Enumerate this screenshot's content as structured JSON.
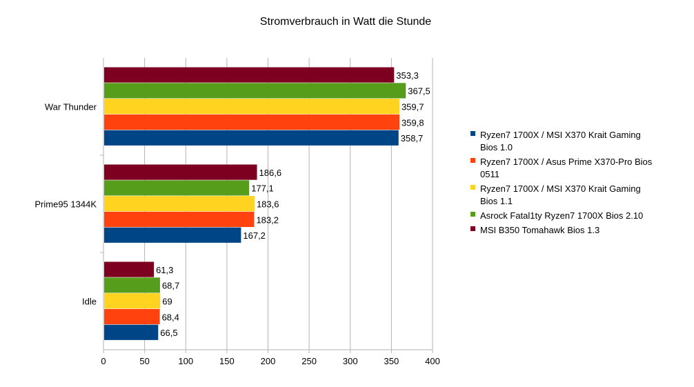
{
  "chart_data": {
    "type": "bar",
    "orientation": "horizontal",
    "title": "Stromverbrauch in Watt die Stunde",
    "xlabel": "",
    "ylabel": "",
    "xlim": [
      0,
      400
    ],
    "x_ticks": [
      "0",
      "50",
      "100",
      "150",
      "200",
      "250",
      "300",
      "350",
      "400"
    ],
    "x_tick_values": [
      0,
      50,
      100,
      150,
      200,
      250,
      300,
      350,
      400
    ],
    "grid": true,
    "legend_position": "right",
    "categories": [
      "War Thunder",
      "Prime95 1344K",
      "Idle"
    ],
    "series": [
      {
        "name": "Ryzen7 1700X / MSI X370 Krait Gaming Bios 1.0",
        "legend_lines": [
          "Ryzen7 1700X / MSI X370 Krait Gaming",
          "Bios 1.0"
        ],
        "color": "#004586",
        "values": [
          358.7,
          167.2,
          66.5
        ],
        "labels": [
          "358,7",
          "167,2",
          "66,5"
        ]
      },
      {
        "name": "Ryzen7 1700X / Asus Prime X370-Pro Bios 0511",
        "legend_lines": [
          "Ryzen7 1700X / Asus Prime X370-Pro Bios",
          "0511"
        ],
        "color": "#ff420e",
        "values": [
          359.8,
          183.2,
          68.4
        ],
        "labels": [
          "359,8",
          "183,2",
          "68,4"
        ]
      },
      {
        "name": "Ryzen7 1700X / MSI X370 Krait Gaming Bios 1.1",
        "legend_lines": [
          "Ryzen7 1700X / MSI X370 Krait Gaming",
          "Bios 1.1"
        ],
        "color": "#ffd320",
        "values": [
          359.7,
          183.6,
          69
        ],
        "labels": [
          "359,7",
          "183,6",
          "69"
        ]
      },
      {
        "name": "Asrock Fatal1ty Ryzen7 1700X Bios 2.10",
        "legend_lines": [
          "Asrock Fatal1ty Ryzen7 1700X Bios 2.10"
        ],
        "color": "#579d1c",
        "values": [
          367.5,
          177.1,
          68.7
        ],
        "labels": [
          "367,5",
          "177,1",
          "68,7"
        ]
      },
      {
        "name": "MSI B350 Tomahawk Bios 1.3",
        "legend_lines": [
          "MSI B350 Tomahawk Bios 1.3"
        ],
        "color": "#7e0021",
        "values": [
          353.3,
          186.6,
          61.3
        ],
        "labels": [
          "353,3",
          "186,6",
          "61,3"
        ]
      }
    ]
  }
}
